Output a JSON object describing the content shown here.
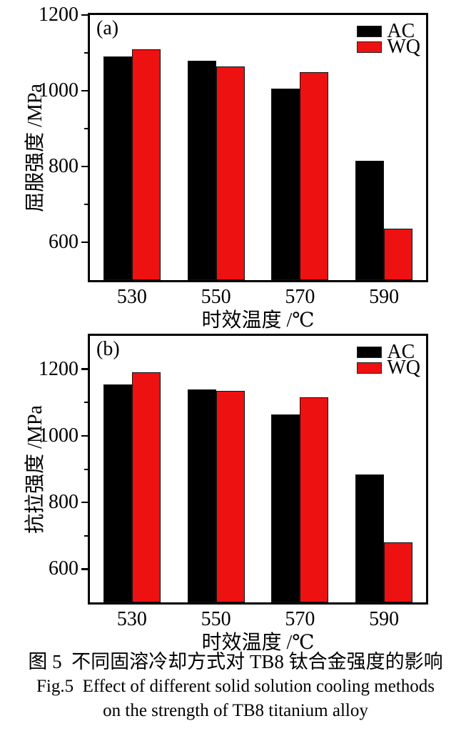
{
  "figure": {
    "caption_zh": "图 5  不同固溶冷却方式对 TB8 钛合金强度的影响",
    "caption_en_line1": "Fig.5  Effect of different solid solution cooling methods",
    "caption_en_line2": "on the strength of TB8 titanium alloy"
  },
  "colors": {
    "ac": "#000000",
    "wq": "#ee1111",
    "frame": "#000000",
    "background": "#ffffff"
  },
  "chart_data": [
    {
      "type": "bar",
      "panel_label": "(a)",
      "xlabel": "时效温度 /℃",
      "ylabel": "屈服强度 /MPa",
      "categories": [
        "530",
        "550",
        "570",
        "590"
      ],
      "series": [
        {
          "name": "AC",
          "color": "#000000",
          "values": [
            1090,
            1080,
            1005,
            815
          ]
        },
        {
          "name": "WQ",
          "color": "#ee1111",
          "values": [
            1110,
            1065,
            1050,
            635
          ]
        }
      ],
      "ylim": [
        500,
        1200
      ],
      "yticks": [
        600,
        800,
        1000,
        1200
      ],
      "minor_tick_step": 100,
      "grid": false,
      "legend_position": "top-right"
    },
    {
      "type": "bar",
      "panel_label": "(b)",
      "xlabel": "时效温度 /℃",
      "ylabel": "抗拉强度 /MPa",
      "categories": [
        "530",
        "550",
        "570",
        "590"
      ],
      "series": [
        {
          "name": "AC",
          "color": "#000000",
          "values": [
            1155,
            1140,
            1065,
            885
          ]
        },
        {
          "name": "WQ",
          "color": "#ee1111",
          "values": [
            1190,
            1135,
            1115,
            680
          ]
        }
      ],
      "ylim": [
        500,
        1300
      ],
      "yticks": [
        600,
        800,
        1000,
        1200
      ],
      "minor_tick_step": 100,
      "grid": false,
      "legend_position": "top-right"
    }
  ]
}
